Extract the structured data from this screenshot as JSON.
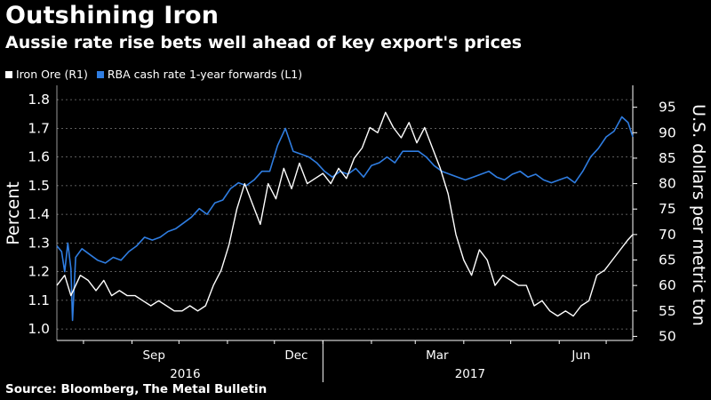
{
  "title": "Outshining Iron",
  "subtitle": "Aussie rate rise bets well ahead of key export's prices",
  "source": "Source: Bloomberg, The Metal Bulletin",
  "colors": {
    "background": "#000000",
    "iron": "#ffffff",
    "rba": "#2f7de1",
    "grid": "#7a7a7a"
  },
  "chart_data": {
    "type": "line",
    "x_axis": {
      "months": [
        "Sep",
        "Dec",
        "Mar",
        "Jun"
      ],
      "years": [
        "2016",
        "2017"
      ],
      "range": [
        "2016-07-15",
        "2017-07-18"
      ]
    },
    "left_axis": {
      "label": "Percent",
      "range": [
        0.96,
        1.85
      ],
      "ticks": [
        "1.0",
        "1.1",
        "1.2",
        "1.3",
        "1.4",
        "1.5",
        "1.6",
        "1.7",
        "1.8"
      ]
    },
    "right_axis": {
      "label": "U.S. dollars per metric ton",
      "range": [
        49.2,
        99.3
      ],
      "ticks": [
        "50",
        "55",
        "60",
        "65",
        "70",
        "75",
        "80",
        "85",
        "90",
        "95"
      ]
    },
    "grid": "horizontal dashed",
    "legend_position": "top-left",
    "series": [
      {
        "name": "Iron Ore (R1)",
        "axis": "right",
        "x": [
          "2016-07-15",
          "2016-07-20",
          "2016-07-24",
          "2016-07-30",
          "2016-08-04",
          "2016-08-09",
          "2016-08-14",
          "2016-08-19",
          "2016-08-24",
          "2016-08-29",
          "2016-09-03",
          "2016-09-08",
          "2016-09-13",
          "2016-09-18",
          "2016-09-23",
          "2016-09-28",
          "2016-10-03",
          "2016-10-08",
          "2016-10-13",
          "2016-10-18",
          "2016-10-23",
          "2016-10-28",
          "2016-11-02",
          "2016-11-07",
          "2016-11-12",
          "2016-11-17",
          "2016-11-22",
          "2016-11-27",
          "2016-12-02",
          "2016-12-07",
          "2016-12-12",
          "2016-12-17",
          "2016-12-22",
          "2016-12-27",
          "2017-01-01",
          "2017-01-06",
          "2017-01-11",
          "2017-01-16",
          "2017-01-21",
          "2017-01-26",
          "2017-01-31",
          "2017-02-05",
          "2017-02-10",
          "2017-02-15",
          "2017-02-20",
          "2017-02-25",
          "2017-03-02",
          "2017-03-07",
          "2017-03-12",
          "2017-03-17",
          "2017-03-22",
          "2017-03-27",
          "2017-04-01",
          "2017-04-06",
          "2017-04-11",
          "2017-04-16",
          "2017-04-21",
          "2017-04-26",
          "2017-05-01",
          "2017-05-06",
          "2017-05-11",
          "2017-05-16",
          "2017-05-21",
          "2017-05-26",
          "2017-05-31",
          "2017-06-05",
          "2017-06-10",
          "2017-06-15",
          "2017-06-20",
          "2017-06-25",
          "2017-06-30",
          "2017-07-05",
          "2017-07-10",
          "2017-07-15",
          "2017-07-18"
        ],
        "values": [
          60,
          62,
          58,
          62,
          61,
          59,
          61,
          58,
          59,
          58,
          58,
          57,
          56,
          57,
          56,
          55,
          55,
          56,
          55,
          56,
          60,
          63,
          68,
          75,
          80,
          76,
          72,
          80,
          77,
          83,
          79,
          84,
          80,
          81,
          82,
          80,
          83,
          81,
          85,
          87,
          91,
          90,
          94,
          91,
          89,
          92,
          88,
          91,
          87,
          83,
          78,
          70,
          65,
          62,
          67,
          65,
          60,
          62,
          61,
          60,
          60,
          56,
          57,
          55,
          54,
          55,
          54,
          56,
          57,
          62,
          63,
          65,
          67,
          69,
          70
        ]
      },
      {
        "name": "RBA cash rate 1-year forwards (L1)",
        "axis": "left",
        "x": [
          "2016-07-15",
          "2016-07-18",
          "2016-07-20",
          "2016-07-22",
          "2016-07-24",
          "2016-07-25",
          "2016-07-27",
          "2016-07-31",
          "2016-08-05",
          "2016-08-10",
          "2016-08-15",
          "2016-08-20",
          "2016-08-25",
          "2016-08-30",
          "2016-09-04",
          "2016-09-09",
          "2016-09-14",
          "2016-09-19",
          "2016-09-24",
          "2016-09-29",
          "2016-10-04",
          "2016-10-09",
          "2016-10-14",
          "2016-10-19",
          "2016-10-24",
          "2016-10-29",
          "2016-11-03",
          "2016-11-08",
          "2016-11-13",
          "2016-11-18",
          "2016-11-23",
          "2016-11-28",
          "2016-12-03",
          "2016-12-08",
          "2016-12-13",
          "2016-12-18",
          "2016-12-23",
          "2016-12-28",
          "2017-01-02",
          "2017-01-07",
          "2017-01-12",
          "2017-01-17",
          "2017-01-22",
          "2017-01-27",
          "2017-02-01",
          "2017-02-06",
          "2017-02-11",
          "2017-02-16",
          "2017-02-21",
          "2017-02-26",
          "2017-03-03",
          "2017-03-08",
          "2017-03-13",
          "2017-03-18",
          "2017-03-23",
          "2017-03-28",
          "2017-04-02",
          "2017-04-07",
          "2017-04-12",
          "2017-04-17",
          "2017-04-22",
          "2017-04-27",
          "2017-05-02",
          "2017-05-07",
          "2017-05-12",
          "2017-05-17",
          "2017-05-22",
          "2017-05-27",
          "2017-06-01",
          "2017-06-06",
          "2017-06-11",
          "2017-06-16",
          "2017-06-21",
          "2017-06-26",
          "2017-07-01",
          "2017-07-06",
          "2017-07-11",
          "2017-07-15",
          "2017-07-18"
        ],
        "values": [
          1.29,
          1.27,
          1.2,
          1.3,
          1.21,
          1.03,
          1.25,
          1.28,
          1.26,
          1.24,
          1.23,
          1.25,
          1.24,
          1.27,
          1.29,
          1.32,
          1.31,
          1.32,
          1.34,
          1.35,
          1.37,
          1.39,
          1.42,
          1.4,
          1.44,
          1.45,
          1.49,
          1.51,
          1.5,
          1.52,
          1.55,
          1.55,
          1.64,
          1.7,
          1.62,
          1.61,
          1.6,
          1.58,
          1.55,
          1.53,
          1.55,
          1.54,
          1.56,
          1.53,
          1.57,
          1.58,
          1.6,
          1.58,
          1.62,
          1.62,
          1.62,
          1.6,
          1.57,
          1.55,
          1.54,
          1.53,
          1.52,
          1.53,
          1.54,
          1.55,
          1.53,
          1.52,
          1.54,
          1.55,
          1.53,
          1.54,
          1.52,
          1.51,
          1.52,
          1.53,
          1.51,
          1.55,
          1.6,
          1.63,
          1.67,
          1.69,
          1.74,
          1.72,
          1.67
        ]
      }
    ]
  }
}
